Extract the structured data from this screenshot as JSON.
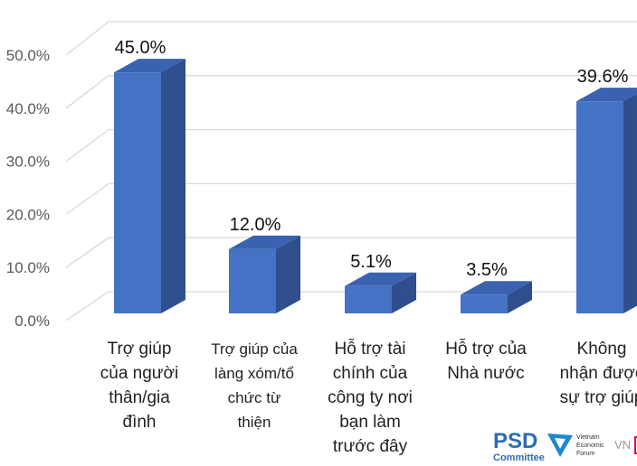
{
  "chart_data": {
    "type": "bar",
    "style": "3d-column",
    "categories": [
      "Trợ giúp\ncủa người\nthân/gia\nđình",
      "Trợ giúp của\nlàng xóm/tổ\nchức từ\nthiện",
      "Hỗ trợ tài\nchính của\ncông ty nơi\nbạn làm\ntrước đây",
      "Hỗ trợ của\nNhà nước",
      "Không\nnhận được\nsự trợ giúp"
    ],
    "values": [
      45.0,
      12.0,
      5.1,
      3.5,
      39.6
    ],
    "data_labels": [
      "45.0%",
      "12.0%",
      "5.1%",
      "3.5%",
      "39.6%"
    ],
    "yticks": [
      "0.0%",
      "10.0%",
      "20.0%",
      "30.0%",
      "40.0%",
      "50.0%"
    ],
    "ylim": [
      0,
      50
    ],
    "grid": true,
    "bar_color": "#4472C4",
    "bar_side_color": "#2E4E8E",
    "bar_top_color": "#3A62B0"
  },
  "logos": {
    "psd": "PSD",
    "psd_sub": "Committee",
    "vef": "Vietnam Economic Forum",
    "vn": "VN"
  }
}
